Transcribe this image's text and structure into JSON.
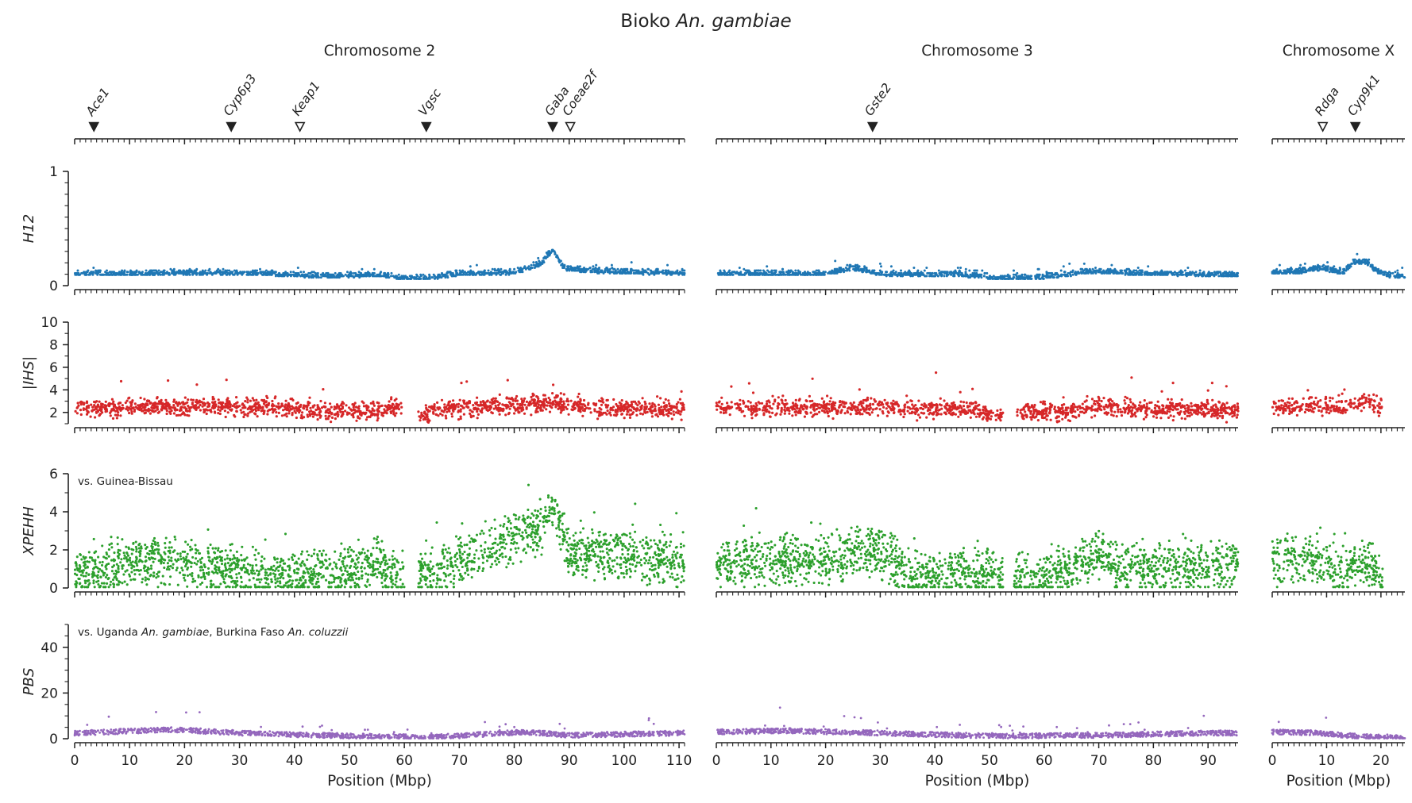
{
  "figure": {
    "title_text": "Bioko ",
    "title_species": "An. gambiae",
    "xlabel": "Position (Mbp)"
  },
  "colors": {
    "h12": "#1f77b4",
    "ihs": "#d62728",
    "xpehh": "#2ca02c",
    "pbs": "#9467bd",
    "axis": "#222222"
  },
  "chart_data": {
    "type": "scatter",
    "chromosomes": [
      {
        "id": "2",
        "title": "Chromosome 2",
        "length_mbp": 111,
        "x_ticks": [
          0,
          10,
          20,
          30,
          40,
          50,
          60,
          70,
          80,
          90,
          100,
          110
        ]
      },
      {
        "id": "3",
        "title": "Chromosome 3",
        "length_mbp": 95.5,
        "x_ticks": [
          0,
          10,
          20,
          30,
          40,
          50,
          60,
          70,
          80,
          90
        ]
      },
      {
        "id": "X",
        "title": "Chromosome X",
        "length_mbp": 24.4,
        "x_ticks": [
          0,
          10,
          20
        ]
      }
    ],
    "genes": [
      {
        "name": "Ace1",
        "chrom": "2",
        "pos_mbp": 3.5,
        "filled": true
      },
      {
        "name": "Cyp6p3",
        "chrom": "2",
        "pos_mbp": 28.5,
        "filled": true
      },
      {
        "name": "Keap1",
        "chrom": "2",
        "pos_mbp": 41,
        "filled": false
      },
      {
        "name": "Vgsc",
        "chrom": "2",
        "pos_mbp": 64,
        "filled": true
      },
      {
        "name": "Gaba",
        "chrom": "2",
        "pos_mbp": 87,
        "filled": true
      },
      {
        "name": "Coeae2f",
        "chrom": "2",
        "pos_mbp": 90.2,
        "filled": false
      },
      {
        "name": "Gste2",
        "chrom": "3",
        "pos_mbp": 28.6,
        "filled": true
      },
      {
        "name": "Rdga",
        "chrom": "X",
        "pos_mbp": 9.3,
        "filled": false
      },
      {
        "name": "Cyp9k1",
        "chrom": "X",
        "pos_mbp": 15.3,
        "filled": true
      }
    ],
    "panels": [
      {
        "id": "h12",
        "ylabel": "H12",
        "ylim": [
          0,
          1
        ],
        "y_ticks": [
          {
            "v": 0,
            "label": "0"
          },
          {
            "v": 1,
            "label": "1"
          }
        ],
        "minor_step": 0.1,
        "annotation": [],
        "profiles": {
          "2": [
            [
              0,
              0.09
            ],
            [
              10,
              0.09
            ],
            [
              20,
              0.1
            ],
            [
              35,
              0.09
            ],
            [
              45,
              0.07
            ],
            [
              55,
              0.08
            ],
            [
              60,
              0.05
            ],
            [
              64,
              0.05
            ],
            [
              70,
              0.09
            ],
            [
              80,
              0.1
            ],
            [
              85,
              0.18
            ],
            [
              87,
              0.3
            ],
            [
              89,
              0.14
            ],
            [
              95,
              0.11
            ],
            [
              105,
              0.1
            ],
            [
              111,
              0.1
            ]
          ],
          "3": [
            [
              0,
              0.09
            ],
            [
              20,
              0.09
            ],
            [
              25,
              0.14
            ],
            [
              30,
              0.09
            ],
            [
              45,
              0.08
            ],
            [
              52,
              0.05
            ],
            [
              60,
              0.06
            ],
            [
              65,
              0.09
            ],
            [
              70,
              0.11
            ],
            [
              80,
              0.09
            ],
            [
              95.5,
              0.08
            ]
          ],
          "X": [
            [
              0,
              0.1
            ],
            [
              5,
              0.11
            ],
            [
              9,
              0.14
            ],
            [
              13,
              0.1
            ],
            [
              15,
              0.19
            ],
            [
              17,
              0.2
            ],
            [
              19,
              0.12
            ],
            [
              22,
              0.07
            ],
            [
              24.4,
              0.06
            ]
          ]
        }
      },
      {
        "id": "ihs",
        "ylabel": "|IHS|",
        "ylim": [
          1,
          10
        ],
        "y_ticks": [
          {
            "v": 2,
            "label": "2"
          },
          {
            "v": 4,
            "label": "4"
          },
          {
            "v": 6,
            "label": "6"
          },
          {
            "v": 8,
            "label": "8"
          },
          {
            "v": 10,
            "label": "10"
          }
        ],
        "minor_step": 1,
        "annotation": [],
        "gaps": {
          "2": [
            [
              59.5,
              62.5
            ]
          ],
          "3": [
            [
              52.5,
              54.8
            ]
          ],
          "X": [
            [
              20.3,
              24.4
            ]
          ]
        },
        "profiles": {
          "2": [
            [
              0,
              2.4
            ],
            [
              20,
              2.5
            ],
            [
              40,
              2.4
            ],
            [
              45,
              2.1
            ],
            [
              55,
              2.2
            ],
            [
              59,
              2.4
            ],
            [
              63,
              1.6
            ],
            [
              66,
              2.3
            ],
            [
              80,
              2.6
            ],
            [
              87,
              2.8
            ],
            [
              95,
              2.4
            ],
            [
              111,
              2.3
            ]
          ],
          "3": [
            [
              0,
              2.4
            ],
            [
              28,
              2.5
            ],
            [
              35,
              2.2
            ],
            [
              45,
              2.3
            ],
            [
              52,
              1.9
            ],
            [
              55,
              2.1
            ],
            [
              62,
              2.0
            ],
            [
              70,
              2.5
            ],
            [
              80,
              2.3
            ],
            [
              95.5,
              2.2
            ]
          ],
          "X": [
            [
              0,
              2.4
            ],
            [
              10,
              2.5
            ],
            [
              17,
              2.9
            ],
            [
              20,
              2.5
            ]
          ]
        }
      },
      {
        "id": "xpehh",
        "ylabel": "XPEHH",
        "ylim": [
          0,
          6
        ],
        "y_ticks": [
          {
            "v": 0,
            "label": "0"
          },
          {
            "v": 2,
            "label": "2"
          },
          {
            "v": 4,
            "label": "4"
          },
          {
            "v": 6,
            "label": "6"
          }
        ],
        "minor_step": 1,
        "annotation": [
          {
            "text": "vs. Guinea-Bissau",
            "italic": false
          }
        ],
        "gaps": {
          "2": [
            [
              60,
              62.5
            ]
          ],
          "3": [
            [
              52.5,
              54.5
            ]
          ],
          "X": [
            [
              20.3,
              24.4
            ]
          ]
        },
        "profiles": {
          "2": [
            [
              0,
              0.7
            ],
            [
              12,
              1.6
            ],
            [
              20,
              1.2
            ],
            [
              30,
              0.8
            ],
            [
              40,
              0.6
            ],
            [
              50,
              0.7
            ],
            [
              55,
              1.4
            ],
            [
              60,
              0.4
            ],
            [
              65,
              1.0
            ],
            [
              75,
              1.8
            ],
            [
              80,
              2.7
            ],
            [
              85,
              3.0
            ],
            [
              87,
              4.3
            ],
            [
              90,
              1.8
            ],
            [
              100,
              1.6
            ],
            [
              111,
              1.3
            ]
          ],
          "3": [
            [
              0,
              1.2
            ],
            [
              10,
              1.5
            ],
            [
              20,
              1.4
            ],
            [
              27,
              2.0
            ],
            [
              32,
              1.6
            ],
            [
              35,
              0.5
            ],
            [
              45,
              0.8
            ],
            [
              52,
              0.6
            ],
            [
              58,
              0.5
            ],
            [
              65,
              1.2
            ],
            [
              70,
              1.7
            ],
            [
              75,
              1.0
            ],
            [
              85,
              1.0
            ],
            [
              95.5,
              1.2
            ]
          ],
          "X": [
            [
              0,
              1.4
            ],
            [
              8,
              1.5
            ],
            [
              12,
              0.8
            ],
            [
              16,
              1.3
            ],
            [
              20,
              0.9
            ]
          ]
        }
      },
      {
        "id": "pbs",
        "ylabel": "PBS",
        "ylim": [
          0,
          50
        ],
        "y_ticks": [
          {
            "v": 0,
            "label": "0"
          },
          {
            "v": 20,
            "label": "20"
          },
          {
            "v": 40,
            "label": "40"
          }
        ],
        "minor_step": 5,
        "annotation": [
          {
            "text": "vs. Uganda ",
            "italic": false
          },
          {
            "text": "An. gambiae",
            "italic": true
          },
          {
            "text": ", Burkina Faso ",
            "italic": false
          },
          {
            "text": "An. coluzzii",
            "italic": true
          }
        ],
        "profiles": {
          "2": [
            [
              0,
              2.5
            ],
            [
              18,
              4
            ],
            [
              30,
              2.5
            ],
            [
              45,
              1.5
            ],
            [
              60,
              0.8
            ],
            [
              63,
              0.4
            ],
            [
              75,
              2
            ],
            [
              82,
              3
            ],
            [
              90,
              1.5
            ],
            [
              100,
              2
            ],
            [
              111,
              2.5
            ]
          ],
          "3": [
            [
              0,
              3
            ],
            [
              13,
              3.5
            ],
            [
              30,
              2.5
            ],
            [
              45,
              1.5
            ],
            [
              55,
              1.2
            ],
            [
              70,
              1.5
            ],
            [
              90,
              2.5
            ],
            [
              95.5,
              2.5
            ]
          ],
          "X": [
            [
              0,
              3
            ],
            [
              8,
              2.5
            ],
            [
              15,
              1.2
            ],
            [
              19,
              0.7
            ],
            [
              24.4,
              0.4
            ]
          ]
        }
      }
    ]
  }
}
